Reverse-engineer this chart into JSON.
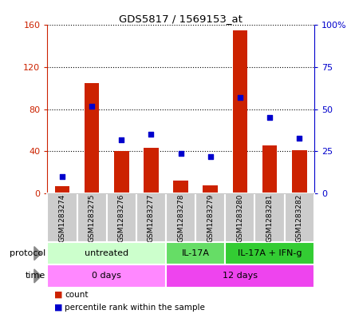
{
  "title": "GDS5817 / 1569153_at",
  "samples": [
    "GSM1283274",
    "GSM1283275",
    "GSM1283276",
    "GSM1283277",
    "GSM1283278",
    "GSM1283279",
    "GSM1283280",
    "GSM1283281",
    "GSM1283282"
  ],
  "counts": [
    7,
    105,
    40,
    43,
    12,
    8,
    155,
    46,
    41
  ],
  "percentiles": [
    10,
    52,
    32,
    35,
    24,
    22,
    57,
    45,
    33
  ],
  "ylim_left": [
    0,
    160
  ],
  "ylim_right": [
    0,
    100
  ],
  "yticks_left": [
    0,
    40,
    80,
    120,
    160
  ],
  "ytick_labels_left": [
    "0",
    "40",
    "80",
    "120",
    "160"
  ],
  "yticks_right": [
    0,
    25,
    50,
    75,
    100
  ],
  "ytick_labels_right": [
    "0",
    "25",
    "50",
    "75",
    "100%"
  ],
  "protocol_groups": [
    {
      "label": "untreated",
      "start": 0,
      "end": 4,
      "color": "#ccffcc"
    },
    {
      "label": "IL-17A",
      "start": 4,
      "end": 6,
      "color": "#66dd66"
    },
    {
      "label": "IL-17A + IFN-g",
      "start": 6,
      "end": 9,
      "color": "#33cc33"
    }
  ],
  "time_groups": [
    {
      "label": "0 days",
      "start": 0,
      "end": 4,
      "color": "#ff88ff"
    },
    {
      "label": "12 days",
      "start": 4,
      "end": 9,
      "color": "#ee44ee"
    }
  ],
  "bar_color": "#cc2200",
  "dot_color": "#0000cc",
  "bar_width": 0.5,
  "protocol_label": "protocol",
  "time_label": "time",
  "legend_count_label": "count",
  "legend_percentile_label": "percentile rank within the sample",
  "background_color": "#ffffff",
  "grid_color": "#000000",
  "axis_color_left": "#cc2200",
  "axis_color_right": "#0000cc",
  "label_box_color": "#cccccc",
  "label_box_edge": "#aaaaaa"
}
